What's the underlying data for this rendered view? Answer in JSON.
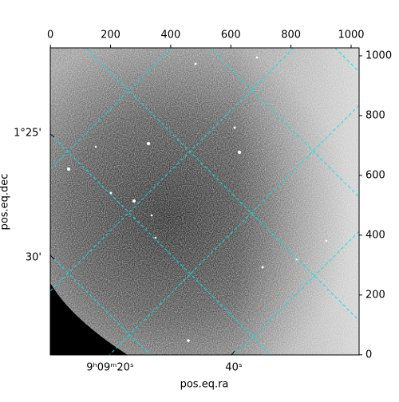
{
  "chart_data": {
    "type": "image",
    "x_label": "pos.eq.ra",
    "y_label": "pos.eq.dec",
    "ra_tick_labels": [
      "9ʰ09ᵐ20ˢ",
      "40ˢ"
    ],
    "dec_tick_labels": [
      "1°25'",
      "30'"
    ],
    "xlim": [
      -0.5,
      1026.5
    ],
    "ylim": [
      -0.5,
      1026.5
    ],
    "xticks": [
      0,
      200,
      400,
      600,
      800,
      1000
    ],
    "yticks": [
      0,
      200,
      400,
      600,
      800,
      1000
    ],
    "grid": true,
    "grid_color": "#00e5e5"
  }
}
